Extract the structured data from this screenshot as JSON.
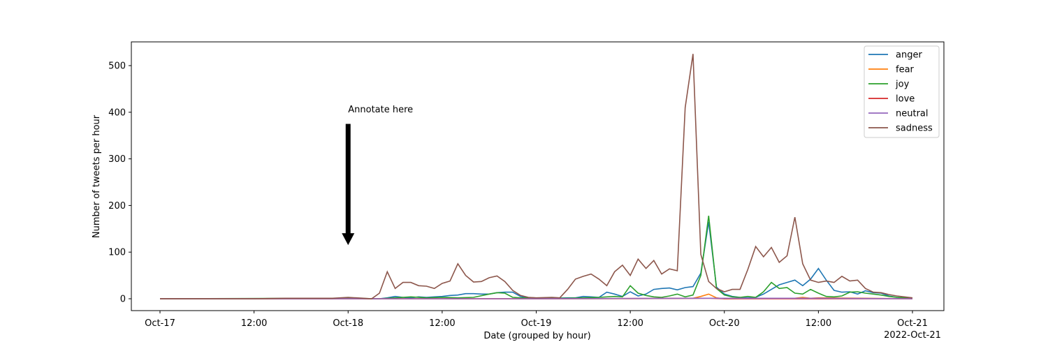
{
  "chart_data": {
    "type": "line",
    "title": "",
    "xlabel": "Date (grouped by hour)",
    "ylabel": "Number of tweets per hour",
    "x_start": "2022-10-17T00:00",
    "x_end": "2022-10-21T00:00",
    "ylim": [
      -25,
      550
    ],
    "grid": false,
    "legend_position": "top-right",
    "x_ticks": [
      {
        "x": "2022-10-17T00:00",
        "label": "Oct-17"
      },
      {
        "x": "2022-10-17T12:00",
        "label": "12:00"
      },
      {
        "x": "2022-10-18T00:00",
        "label": "Oct-18"
      },
      {
        "x": "2022-10-18T12:00",
        "label": "12:00"
      },
      {
        "x": "2022-10-19T00:00",
        "label": "Oct-19"
      },
      {
        "x": "2022-10-19T12:00",
        "label": "12:00"
      },
      {
        "x": "2022-10-20T00:00",
        "label": "Oct-20"
      },
      {
        "x": "2022-10-20T12:00",
        "label": "12:00"
      },
      {
        "x": "2022-10-21T00:00",
        "label": "Oct-21"
      }
    ],
    "x_offset_label": "2022-Oct-21",
    "y_ticks": [
      0,
      100,
      200,
      300,
      400,
      500
    ],
    "annotation": {
      "text": "Annotate here",
      "x": "2022-10-18T00:00",
      "arrow_from": 375,
      "arrow_to": 115
    },
    "series": [
      {
        "name": "anger",
        "color": "#1f77b4",
        "points": [
          [
            "2022-10-17T00:00",
            0
          ],
          [
            "2022-10-17T10:00",
            0
          ],
          [
            "2022-10-17T18:00",
            0
          ],
          [
            "2022-10-17T22:00",
            0
          ],
          [
            "2022-10-18T00:00",
            1
          ],
          [
            "2022-10-18T02:00",
            0
          ],
          [
            "2022-10-18T04:00",
            0
          ],
          [
            "2022-10-18T05:00",
            2
          ],
          [
            "2022-10-18T06:00",
            5
          ],
          [
            "2022-10-18T07:00",
            3
          ],
          [
            "2022-10-18T08:00",
            2
          ],
          [
            "2022-10-18T09:00",
            4
          ],
          [
            "2022-10-18T10:00",
            3
          ],
          [
            "2022-10-18T11:00",
            4
          ],
          [
            "2022-10-18T12:00",
            5
          ],
          [
            "2022-10-18T13:00",
            7
          ],
          [
            "2022-10-18T14:00",
            8
          ],
          [
            "2022-10-18T15:00",
            11
          ],
          [
            "2022-10-18T16:00",
            11
          ],
          [
            "2022-10-18T17:00",
            10
          ],
          [
            "2022-10-18T18:00",
            10
          ],
          [
            "2022-10-18T19:00",
            13
          ],
          [
            "2022-10-18T20:00",
            14
          ],
          [
            "2022-10-18T21:00",
            14
          ],
          [
            "2022-10-18T22:00",
            5
          ],
          [
            "2022-10-18T23:00",
            2
          ],
          [
            "2022-10-19T00:00",
            1
          ],
          [
            "2022-10-19T02:00",
            1
          ],
          [
            "2022-10-19T04:00",
            2
          ],
          [
            "2022-10-19T05:00",
            2
          ],
          [
            "2022-10-19T06:00",
            5
          ],
          [
            "2022-10-19T07:00",
            4
          ],
          [
            "2022-10-19T08:00",
            3
          ],
          [
            "2022-10-19T09:00",
            14
          ],
          [
            "2022-10-19T10:00",
            10
          ],
          [
            "2022-10-19T11:00",
            5
          ],
          [
            "2022-10-19T12:00",
            15
          ],
          [
            "2022-10-19T13:00",
            6
          ],
          [
            "2022-10-19T14:00",
            10
          ],
          [
            "2022-10-19T15:00",
            20
          ],
          [
            "2022-10-19T16:00",
            22
          ],
          [
            "2022-10-19T17:00",
            23
          ],
          [
            "2022-10-19T18:00",
            19
          ],
          [
            "2022-10-19T19:00",
            24
          ],
          [
            "2022-10-19T20:00",
            26
          ],
          [
            "2022-10-19T21:00",
            55
          ],
          [
            "2022-10-19T22:00",
            165
          ],
          [
            "2022-10-19T23:00",
            25
          ],
          [
            "2022-10-20T00:00",
            10
          ],
          [
            "2022-10-20T01:00",
            5
          ],
          [
            "2022-10-20T02:00",
            3
          ],
          [
            "2022-10-20T03:00",
            2
          ],
          [
            "2022-10-20T04:00",
            3
          ],
          [
            "2022-10-20T05:00",
            10
          ],
          [
            "2022-10-20T06:00",
            20
          ],
          [
            "2022-10-20T07:00",
            30
          ],
          [
            "2022-10-20T08:00",
            35
          ],
          [
            "2022-10-20T09:00",
            40
          ],
          [
            "2022-10-20T10:00",
            28
          ],
          [
            "2022-10-20T11:00",
            42
          ],
          [
            "2022-10-20T12:00",
            65
          ],
          [
            "2022-10-20T13:00",
            40
          ],
          [
            "2022-10-20T14:00",
            18
          ],
          [
            "2022-10-20T15:00",
            14
          ],
          [
            "2022-10-20T16:00",
            15
          ],
          [
            "2022-10-20T17:00",
            10
          ],
          [
            "2022-10-20T18:00",
            17
          ],
          [
            "2022-10-20T19:00",
            13
          ],
          [
            "2022-10-20T20:00",
            12
          ],
          [
            "2022-10-20T21:00",
            6
          ],
          [
            "2022-10-20T22:00",
            3
          ],
          [
            "2022-10-20T23:00",
            2
          ],
          [
            "2022-10-21T00:00",
            1
          ]
        ]
      },
      {
        "name": "fear",
        "color": "#ff7f0e",
        "points": [
          [
            "2022-10-17T00:00",
            0
          ],
          [
            "2022-10-18T00:00",
            0
          ],
          [
            "2022-10-18T12:00",
            0
          ],
          [
            "2022-10-19T00:00",
            0
          ],
          [
            "2022-10-19T12:00",
            0
          ],
          [
            "2022-10-19T20:00",
            1
          ],
          [
            "2022-10-19T21:00",
            5
          ],
          [
            "2022-10-19T22:00",
            10
          ],
          [
            "2022-10-19T23:00",
            2
          ],
          [
            "2022-10-20T00:00",
            0
          ],
          [
            "2022-10-20T06:00",
            1
          ],
          [
            "2022-10-20T09:00",
            1
          ],
          [
            "2022-10-20T10:00",
            3
          ],
          [
            "2022-10-20T11:00",
            1
          ],
          [
            "2022-10-20T12:00",
            2
          ],
          [
            "2022-10-20T18:00",
            1
          ],
          [
            "2022-10-21T00:00",
            0
          ]
        ]
      },
      {
        "name": "joy",
        "color": "#2ca02c",
        "points": [
          [
            "2022-10-17T00:00",
            0
          ],
          [
            "2022-10-18T00:00",
            1
          ],
          [
            "2022-10-18T04:00",
            0
          ],
          [
            "2022-10-18T06:00",
            2
          ],
          [
            "2022-10-18T08:00",
            4
          ],
          [
            "2022-10-18T10:00",
            2
          ],
          [
            "2022-10-18T12:00",
            3
          ],
          [
            "2022-10-18T14:00",
            2
          ],
          [
            "2022-10-18T16:00",
            3
          ],
          [
            "2022-10-18T18:00",
            10
          ],
          [
            "2022-10-18T19:00",
            13
          ],
          [
            "2022-10-18T20:00",
            12
          ],
          [
            "2022-10-18T21:00",
            3
          ],
          [
            "2022-10-18T22:00",
            2
          ],
          [
            "2022-10-19T00:00",
            1
          ],
          [
            "2022-10-19T04:00",
            1
          ],
          [
            "2022-10-19T06:00",
            2
          ],
          [
            "2022-10-19T08:00",
            3
          ],
          [
            "2022-10-19T10:00",
            5
          ],
          [
            "2022-10-19T11:00",
            4
          ],
          [
            "2022-10-19T12:00",
            28
          ],
          [
            "2022-10-19T13:00",
            12
          ],
          [
            "2022-10-19T14:00",
            7
          ],
          [
            "2022-10-19T15:00",
            4
          ],
          [
            "2022-10-19T16:00",
            3
          ],
          [
            "2022-10-19T17:00",
            6
          ],
          [
            "2022-10-19T18:00",
            10
          ],
          [
            "2022-10-19T19:00",
            4
          ],
          [
            "2022-10-19T20:00",
            8
          ],
          [
            "2022-10-19T21:00",
            50
          ],
          [
            "2022-10-19T22:00",
            178
          ],
          [
            "2022-10-19T23:00",
            22
          ],
          [
            "2022-10-20T00:00",
            8
          ],
          [
            "2022-10-20T01:00",
            4
          ],
          [
            "2022-10-20T02:00",
            3
          ],
          [
            "2022-10-20T03:00",
            5
          ],
          [
            "2022-10-20T04:00",
            3
          ],
          [
            "2022-10-20T05:00",
            15
          ],
          [
            "2022-10-20T06:00",
            35
          ],
          [
            "2022-10-20T07:00",
            22
          ],
          [
            "2022-10-20T08:00",
            24
          ],
          [
            "2022-10-20T09:00",
            12
          ],
          [
            "2022-10-20T10:00",
            10
          ],
          [
            "2022-10-20T11:00",
            20
          ],
          [
            "2022-10-20T12:00",
            12
          ],
          [
            "2022-10-20T13:00",
            5
          ],
          [
            "2022-10-20T14:00",
            4
          ],
          [
            "2022-10-20T15:00",
            6
          ],
          [
            "2022-10-20T16:00",
            14
          ],
          [
            "2022-10-20T17:00",
            15
          ],
          [
            "2022-10-20T18:00",
            12
          ],
          [
            "2022-10-20T19:00",
            10
          ],
          [
            "2022-10-20T20:00",
            8
          ],
          [
            "2022-10-20T21:00",
            5
          ],
          [
            "2022-10-20T22:00",
            3
          ],
          [
            "2022-10-21T00:00",
            1
          ]
        ]
      },
      {
        "name": "love",
        "color": "#d62728",
        "points": [
          [
            "2022-10-17T00:00",
            0
          ],
          [
            "2022-10-18T00:00",
            0
          ],
          [
            "2022-10-19T00:00",
            0
          ],
          [
            "2022-10-19T22:00",
            1
          ],
          [
            "2022-10-20T00:00",
            0
          ],
          [
            "2022-10-21T00:00",
            0
          ]
        ]
      },
      {
        "name": "neutral",
        "color": "#9467bd",
        "points": [
          [
            "2022-10-17T00:00",
            0
          ],
          [
            "2022-10-18T00:00",
            0
          ],
          [
            "2022-10-19T00:00",
            0
          ],
          [
            "2022-10-19T22:00",
            1
          ],
          [
            "2022-10-20T06:00",
            1
          ],
          [
            "2022-10-20T12:00",
            1
          ],
          [
            "2022-10-21T00:00",
            0
          ]
        ]
      },
      {
        "name": "sadness",
        "color": "#8c564b",
        "points": [
          [
            "2022-10-17T00:00",
            0
          ],
          [
            "2022-10-17T06:00",
            0
          ],
          [
            "2022-10-17T12:00",
            0
          ],
          [
            "2022-10-17T16:00",
            1
          ],
          [
            "2022-10-17T20:00",
            1
          ],
          [
            "2022-10-17T22:00",
            1
          ],
          [
            "2022-10-18T00:00",
            3
          ],
          [
            "2022-10-18T02:00",
            1
          ],
          [
            "2022-10-18T03:00",
            0
          ],
          [
            "2022-10-18T04:00",
            12
          ],
          [
            "2022-10-18T05:00",
            58
          ],
          [
            "2022-10-18T06:00",
            22
          ],
          [
            "2022-10-18T07:00",
            35
          ],
          [
            "2022-10-18T08:00",
            35
          ],
          [
            "2022-10-18T09:00",
            28
          ],
          [
            "2022-10-18T10:00",
            27
          ],
          [
            "2022-10-18T11:00",
            22
          ],
          [
            "2022-10-18T12:00",
            33
          ],
          [
            "2022-10-18T13:00",
            38
          ],
          [
            "2022-10-18T14:00",
            75
          ],
          [
            "2022-10-18T15:00",
            50
          ],
          [
            "2022-10-18T16:00",
            36
          ],
          [
            "2022-10-18T17:00",
            37
          ],
          [
            "2022-10-18T18:00",
            45
          ],
          [
            "2022-10-18T19:00",
            49
          ],
          [
            "2022-10-18T20:00",
            37
          ],
          [
            "2022-10-18T21:00",
            18
          ],
          [
            "2022-10-18T22:00",
            7
          ],
          [
            "2022-10-18T23:00",
            3
          ],
          [
            "2022-10-19T00:00",
            2
          ],
          [
            "2022-10-19T02:00",
            3
          ],
          [
            "2022-10-19T03:00",
            2
          ],
          [
            "2022-10-19T04:00",
            20
          ],
          [
            "2022-10-19T05:00",
            42
          ],
          [
            "2022-10-19T06:00",
            48
          ],
          [
            "2022-10-19T07:00",
            53
          ],
          [
            "2022-10-19T08:00",
            42
          ],
          [
            "2022-10-19T09:00",
            28
          ],
          [
            "2022-10-19T10:00",
            58
          ],
          [
            "2022-10-19T11:00",
            72
          ],
          [
            "2022-10-19T12:00",
            50
          ],
          [
            "2022-10-19T13:00",
            85
          ],
          [
            "2022-10-19T14:00",
            65
          ],
          [
            "2022-10-19T15:00",
            82
          ],
          [
            "2022-10-19T16:00",
            53
          ],
          [
            "2022-10-19T17:00",
            64
          ],
          [
            "2022-10-19T18:00",
            60
          ],
          [
            "2022-10-19T19:00",
            410
          ],
          [
            "2022-10-19T20:00",
            525
          ],
          [
            "2022-10-19T21:00",
            95
          ],
          [
            "2022-10-19T22:00",
            37
          ],
          [
            "2022-10-19T23:00",
            22
          ],
          [
            "2022-10-20T00:00",
            15
          ],
          [
            "2022-10-20T01:00",
            20
          ],
          [
            "2022-10-20T02:00",
            20
          ],
          [
            "2022-10-20T03:00",
            63
          ],
          [
            "2022-10-20T04:00",
            112
          ],
          [
            "2022-10-20T05:00",
            90
          ],
          [
            "2022-10-20T06:00",
            110
          ],
          [
            "2022-10-20T07:00",
            78
          ],
          [
            "2022-10-20T08:00",
            92
          ],
          [
            "2022-10-20T09:00",
            175
          ],
          [
            "2022-10-20T10:00",
            75
          ],
          [
            "2022-10-20T11:00",
            40
          ],
          [
            "2022-10-20T12:00",
            35
          ],
          [
            "2022-10-20T13:00",
            38
          ],
          [
            "2022-10-20T14:00",
            35
          ],
          [
            "2022-10-20T15:00",
            48
          ],
          [
            "2022-10-20T16:00",
            38
          ],
          [
            "2022-10-20T17:00",
            40
          ],
          [
            "2022-10-20T18:00",
            22
          ],
          [
            "2022-10-20T19:00",
            14
          ],
          [
            "2022-10-20T20:00",
            13
          ],
          [
            "2022-10-20T21:00",
            9
          ],
          [
            "2022-10-20T22:00",
            6
          ],
          [
            "2022-10-21T00:00",
            2
          ]
        ]
      }
    ]
  }
}
